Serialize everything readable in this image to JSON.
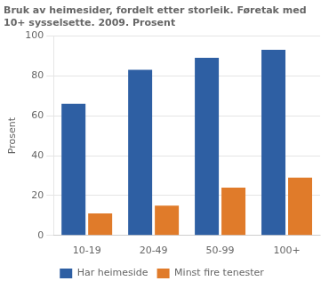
{
  "chart_data": {
    "type": "bar",
    "title": [
      "Bruk av heimesider, fordelt etter storleik. Føretak med",
      "10+ sysselsette. 2009. Prosent"
    ],
    "ylabel": "Prosent",
    "categories": [
      "10-19",
      "20-49",
      "50-99",
      "100+"
    ],
    "series": [
      {
        "name": "Har heimeside",
        "values": [
          66,
          83,
          89,
          93
        ],
        "color": "#2E5FA3"
      },
      {
        "name": "Minst fire tenester",
        "values": [
          11,
          15,
          24,
          29
        ],
        "color": "#E07B2A"
      }
    ],
    "ylim": [
      0,
      100
    ],
    "yticks": [
      0,
      20,
      40,
      60,
      80,
      100
    ],
    "grid": true,
    "legend": "bottom"
  }
}
